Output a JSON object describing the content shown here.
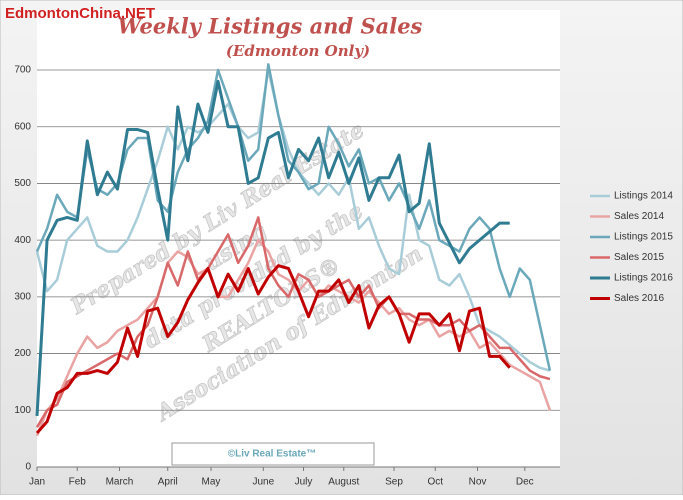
{
  "chart_data": {
    "type": "line",
    "brand": "EdmontonChina.NET",
    "title": "Weekly Listings and Sales",
    "subtitle": "(Edmonton Only)",
    "footer": "©Liv Real Estate™",
    "watermark": [
      "Prepared by Liv Real Estate",
      "using",
      "data provided by the",
      "REALTORS®",
      "Association of Edmonton"
    ],
    "x": [
      0,
      1,
      2,
      3,
      4,
      5,
      6,
      7,
      8,
      9,
      10,
      11,
      12,
      13,
      14,
      15,
      16,
      17,
      18,
      19,
      20,
      21,
      22,
      23,
      24,
      25,
      26,
      27,
      28,
      29,
      30,
      31,
      32,
      33,
      34,
      35,
      36,
      37,
      38,
      39,
      40,
      41,
      42,
      43,
      44,
      45,
      46,
      47,
      48,
      49,
      50,
      51
    ],
    "xlim": [
      0,
      52
    ],
    "xticks": [
      {
        "value": 0,
        "label": "Jan"
      },
      {
        "value": 4,
        "label": "Feb"
      },
      {
        "value": 8.2,
        "label": "March"
      },
      {
        "value": 13,
        "label": "April"
      },
      {
        "value": 17.3,
        "label": "May"
      },
      {
        "value": 22.5,
        "label": "June"
      },
      {
        "value": 26.5,
        "label": "July"
      },
      {
        "value": 30.5,
        "label": "August"
      },
      {
        "value": 35.5,
        "label": "Sep"
      },
      {
        "value": 39.6,
        "label": "Oct"
      },
      {
        "value": 43.8,
        "label": "Nov"
      },
      {
        "value": 48.5,
        "label": "Dec"
      }
    ],
    "ylim": [
      0,
      700
    ],
    "yticks": [
      0,
      100,
      200,
      300,
      400,
      500,
      600,
      700
    ],
    "grid": true,
    "legend": "right",
    "series": [
      {
        "name": "Listings 2014",
        "color": "#a9cdd8",
        "width": 2.5,
        "values": [
          380,
          310,
          330,
          400,
          420,
          440,
          390,
          380,
          380,
          400,
          440,
          490,
          540,
          600,
          560,
          600,
          590,
          600,
          620,
          640,
          600,
          580,
          590,
          700,
          620,
          560,
          520,
          500,
          480,
          500,
          480,
          510,
          420,
          440,
          390,
          350,
          340,
          480,
          400,
          390,
          330,
          320,
          340,
          300,
          250,
          240,
          230,
          215,
          200,
          185,
          175,
          170
        ]
      },
      {
        "name": "Sales 2014",
        "color": "#eaa3a3",
        "width": 2.5,
        "values": [
          55,
          100,
          120,
          160,
          200,
          230,
          210,
          220,
          240,
          250,
          260,
          280,
          300,
          360,
          380,
          370,
          340,
          350,
          300,
          300,
          330,
          360,
          400,
          380,
          340,
          330,
          310,
          330,
          300,
          320,
          310,
          300,
          290,
          310,
          290,
          270,
          280,
          260,
          250,
          260,
          230,
          240,
          230,
          240,
          210,
          220,
          200,
          180,
          170,
          160,
          150,
          100
        ]
      },
      {
        "name": "Listings 2015",
        "color": "#6aa8ba",
        "width": 2.5,
        "values": [
          380,
          420,
          480,
          450,
          440,
          560,
          490,
          480,
          500,
          560,
          580,
          580,
          470,
          450,
          520,
          560,
          580,
          610,
          700,
          650,
          600,
          540,
          560,
          710,
          620,
          540,
          520,
          490,
          500,
          600,
          570,
          530,
          560,
          500,
          510,
          470,
          500,
          460,
          420,
          470,
          400,
          390,
          380,
          420,
          440,
          420,
          350,
          300,
          350,
          330,
          250,
          170
        ]
      },
      {
        "name": "Sales 2015",
        "color": "#d9686a",
        "width": 2.5,
        "values": [
          70,
          100,
          110,
          150,
          160,
          170,
          180,
          190,
          200,
          190,
          230,
          250,
          300,
          360,
          320,
          380,
          330,
          350,
          380,
          410,
          360,
          390,
          440,
          350,
          320,
          300,
          340,
          330,
          300,
          310,
          320,
          330,
          300,
          320,
          280,
          300,
          270,
          270,
          260,
          260,
          250,
          250,
          260,
          240,
          250,
          230,
          210,
          210,
          190,
          170,
          160,
          155
        ]
      },
      {
        "name": "Listings 2016",
        "color": "#2f7b91",
        "width": 3,
        "values": [
          90,
          400,
          435,
          440,
          435,
          575,
          480,
          520,
          490,
          595,
          595,
          590,
          490,
          400,
          635,
          540,
          640,
          590,
          680,
          600,
          600,
          500,
          510,
          580,
          590,
          510,
          560,
          540,
          580,
          510,
          555,
          500,
          545,
          470,
          510,
          510,
          550,
          450,
          465,
          570,
          430,
          395,
          360,
          385,
          400,
          415,
          430,
          430,
          null,
          null,
          null,
          null
        ]
      },
      {
        "name": "Sales 2016",
        "color": "#c00000",
        "width": 3,
        "values": [
          60,
          80,
          130,
          140,
          165,
          165,
          170,
          165,
          185,
          245,
          195,
          275,
          280,
          230,
          255,
          295,
          325,
          350,
          300,
          340,
          310,
          350,
          305,
          335,
          355,
          350,
          310,
          265,
          310,
          310,
          330,
          290,
          320,
          245,
          285,
          300,
          270,
          220,
          270,
          270,
          250,
          270,
          205,
          275,
          280,
          195,
          195,
          175,
          null,
          null,
          null,
          null
        ]
      }
    ]
  }
}
